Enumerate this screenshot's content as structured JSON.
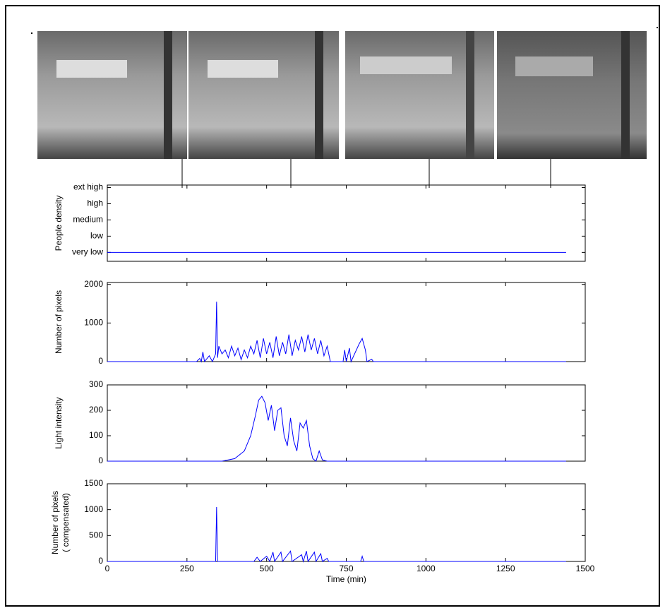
{
  "chart_data": [
    {
      "type": "line",
      "ylabel": [
        "People density"
      ],
      "color": "#0000ff",
      "x": [
        0,
        1440
      ],
      "values": [
        0,
        0
      ],
      "xlim": [
        0,
        1500
      ],
      "xticks": [
        0,
        250,
        500,
        750,
        1000,
        1250,
        1500
      ],
      "ylim": [
        -0.55,
        4.15
      ],
      "yticks": [
        {
          "value": 0,
          "label": "very low"
        },
        {
          "value": 1,
          "label": "low"
        },
        {
          "value": 2,
          "label": "medium"
        },
        {
          "value": 3,
          "label": "high"
        },
        {
          "value": 4,
          "label": "ext high"
        }
      ]
    },
    {
      "type": "line",
      "ylabel": [
        "Number of pixels"
      ],
      "color": "#0000ff",
      "x": [
        0,
        280,
        290,
        295,
        300,
        305,
        320,
        330,
        340,
        343,
        346,
        350,
        360,
        370,
        380,
        390,
        400,
        410,
        420,
        430,
        440,
        450,
        460,
        470,
        480,
        490,
        500,
        510,
        520,
        530,
        540,
        550,
        560,
        570,
        580,
        590,
        600,
        610,
        620,
        630,
        640,
        650,
        660,
        670,
        680,
        690,
        700,
        740,
        745,
        750,
        760,
        765,
        790,
        800,
        810,
        815,
        830,
        835,
        1440
      ],
      "values": [
        0,
        0,
        80,
        0,
        250,
        0,
        150,
        0,
        200,
        1550,
        100,
        400,
        200,
        300,
        100,
        400,
        150,
        350,
        50,
        300,
        100,
        400,
        200,
        550,
        100,
        600,
        200,
        500,
        100,
        650,
        150,
        500,
        200,
        700,
        150,
        550,
        300,
        650,
        250,
        700,
        300,
        600,
        200,
        550,
        150,
        400,
        0,
        0,
        300,
        0,
        350,
        0,
        450,
        600,
        300,
        0,
        60,
        0,
        0
      ],
      "xlim": [
        0,
        1500
      ],
      "xticks": [
        0,
        250,
        500,
        750,
        1000,
        1250,
        1500
      ],
      "ylim": [
        0,
        2050
      ],
      "yticks": [
        0,
        1000,
        2000
      ]
    },
    {
      "type": "line",
      "ylabel": [
        "Light intensity"
      ],
      "color": "#0000ff",
      "x": [
        0,
        360,
        400,
        430,
        450,
        465,
        475,
        485,
        495,
        505,
        515,
        525,
        535,
        545,
        555,
        565,
        575,
        585,
        595,
        605,
        615,
        625,
        635,
        645,
        655,
        665,
        675,
        690,
        1440
      ],
      "values": [
        0,
        0,
        10,
        40,
        100,
        180,
        240,
        255,
        230,
        160,
        220,
        120,
        200,
        210,
        100,
        60,
        170,
        80,
        40,
        150,
        130,
        160,
        60,
        10,
        0,
        40,
        5,
        0,
        0
      ],
      "xlim": [
        0,
        1500
      ],
      "xticks": [
        0,
        250,
        500,
        750,
        1000,
        1250,
        1500
      ],
      "ylim": [
        0,
        300
      ],
      "yticks": [
        0,
        100,
        200,
        300
      ]
    },
    {
      "type": "line",
      "ylabel": [
        "Number of pixels",
        "( compensated)"
      ],
      "xlabel": "Time (min)",
      "color": "#0000ff",
      "x": [
        0,
        340,
        343,
        346,
        460,
        470,
        480,
        500,
        510,
        520,
        525,
        545,
        550,
        575,
        580,
        610,
        615,
        625,
        630,
        650,
        655,
        670,
        675,
        690,
        695,
        795,
        800,
        805,
        1440
      ],
      "values": [
        0,
        0,
        1050,
        0,
        0,
        80,
        0,
        100,
        0,
        180,
        0,
        180,
        0,
        200,
        0,
        130,
        0,
        200,
        0,
        180,
        0,
        150,
        0,
        60,
        0,
        0,
        100,
        0,
        0
      ],
      "xlim": [
        0,
        1500
      ],
      "xticks": [
        0,
        250,
        500,
        750,
        1000,
        1250,
        1500
      ],
      "ylim": [
        0,
        1500
      ],
      "yticks": [
        0,
        500,
        1000,
        1500
      ]
    }
  ]
}
